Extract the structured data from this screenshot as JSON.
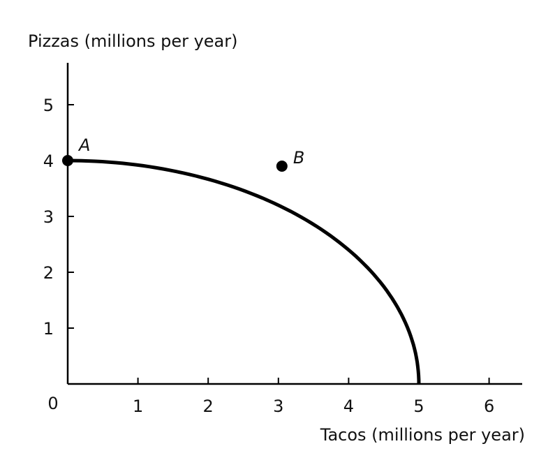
{
  "chart_data": {
    "type": "line",
    "xlabel": "Tacos (millions per year)",
    "ylabel": "Pizzas (millions per year)",
    "origin_label": "0",
    "xlim": [
      0,
      6.5
    ],
    "ylim": [
      0,
      5.75
    ],
    "x_ticks": [
      1,
      2,
      3,
      4,
      5,
      6
    ],
    "x_tick_labels": [
      "1",
      "2",
      "3",
      "4",
      "5",
      "6"
    ],
    "y_ticks": [
      1,
      2,
      3,
      4,
      5
    ],
    "y_tick_labels": [
      "1",
      "2",
      "3",
      "4",
      "5"
    ],
    "grid": false,
    "series": [
      {
        "x": [
          0,
          0.5,
          1,
          1.5,
          2,
          2.5,
          3,
          3.5,
          4,
          4.5,
          5
        ],
        "y": [
          4.0,
          3.98,
          3.92,
          3.82,
          3.67,
          3.46,
          3.2,
          2.86,
          2.4,
          1.74,
          0
        ]
      }
    ],
    "points": [
      {
        "label": "A",
        "x": 0,
        "y": 4.0
      },
      {
        "label": "B",
        "x": 3.05,
        "y": 3.9
      }
    ],
    "colors": {
      "curve": "#000000",
      "axes": "#000000",
      "points": "#000000"
    }
  }
}
